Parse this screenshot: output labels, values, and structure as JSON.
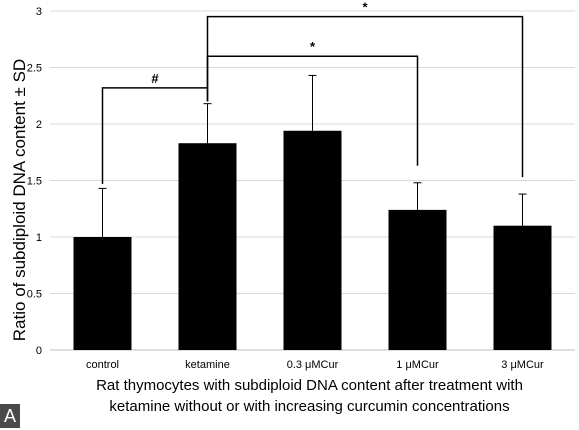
{
  "panel_label": "A",
  "chart_data": {
    "type": "bar",
    "categories": [
      "control",
      "ketamine",
      "0.3 μMCur",
      "1 μMCur",
      "3 μMCur"
    ],
    "values": [
      1.0,
      1.83,
      1.94,
      1.24,
      1.1
    ],
    "error_sd": [
      0.43,
      0.35,
      0.49,
      0.24,
      0.28
    ],
    "bar_color": "#000000",
    "ylabel": "Ratio of  subdiploid DNA content ± SD",
    "xlabel_lines": [
      "Rat thymocytes with subdiploid DNA content after treatment with",
      "ketamine without or with increasing curcumin concentrations"
    ],
    "ylim": [
      0,
      3
    ],
    "yticks": [
      "0",
      "0.5",
      "1",
      "1.5",
      "2",
      "2.5",
      "3"
    ],
    "grid": true,
    "significance": [
      {
        "from": "control",
        "to": "ketamine",
        "label": "#"
      },
      {
        "from": "ketamine",
        "to": "1 μMCur",
        "label": "*"
      },
      {
        "from": "ketamine",
        "to": "3 μMCur",
        "label": "*"
      }
    ]
  }
}
